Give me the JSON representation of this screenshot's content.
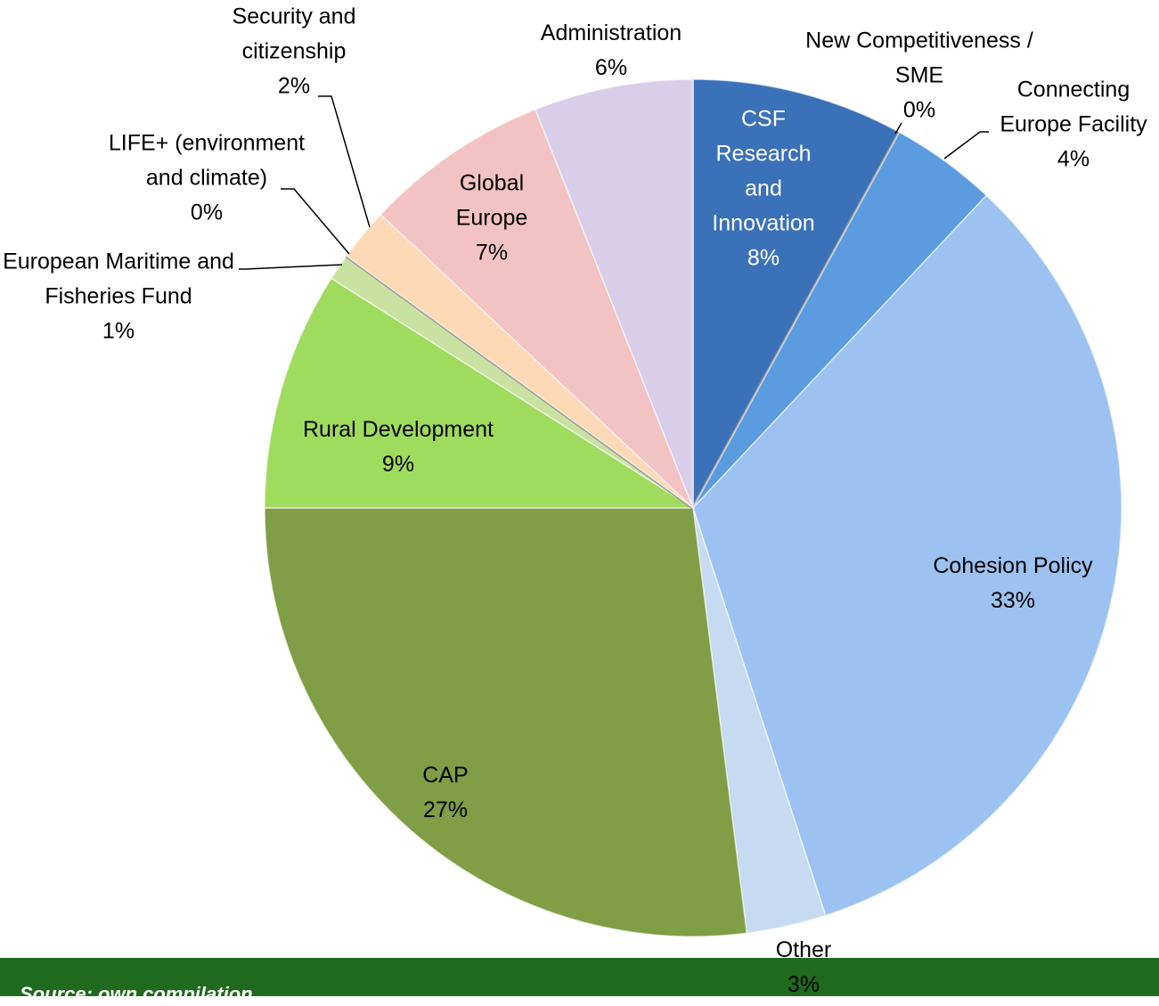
{
  "chart_data": {
    "type": "pie",
    "categories": [
      "CSF Research and Innovation",
      "New Competitiveness / SME",
      "Connecting Europe Facility",
      "Cohesion Policy",
      "Other",
      "CAP",
      "Rural Development",
      "European Maritime and Fisheries Fund",
      "LIFE+ (environment and climate)",
      "Security and citizenship",
      "Global Europe",
      "Administration"
    ],
    "values": [
      8,
      0,
      4,
      33,
      3,
      27,
      9,
      1,
      0,
      2,
      7,
      6
    ],
    "value_labels": [
      "8%",
      "0%",
      "4%",
      "33%",
      "3%",
      "27%",
      "9%",
      "1%",
      "0%",
      "2%",
      "7%",
      "6%"
    ],
    "colors": [
      "#3a71b8",
      "#a6a6a6",
      "#5b9be0",
      "#9cc2f1",
      "#c6daf2",
      "#7f9e45",
      "#9fdb5c",
      "#c9e2a2",
      "#e9f1d3",
      "#fdd9b6",
      "#f3c3c3",
      "#dacde9"
    ],
    "source": "Source: own compilation"
  }
}
